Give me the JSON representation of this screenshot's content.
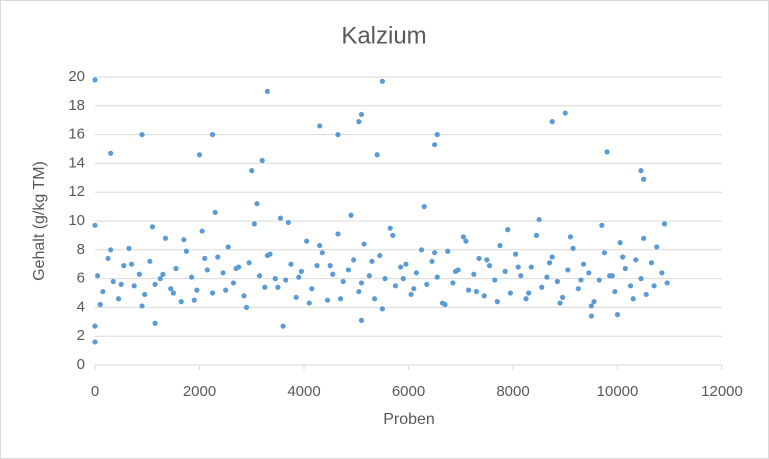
{
  "chart_data": {
    "type": "scatter",
    "title": "Kalzium",
    "x_label": "Proben",
    "y_label": "Gehalt (g/kg TM)",
    "color": "#5b9bd5",
    "grid": true,
    "xlim": [
      0,
      12000
    ],
    "xticks": [
      0,
      2000,
      4000,
      6000,
      8000,
      10000,
      12000
    ],
    "ylim": [
      0,
      20
    ],
    "yticks": [
      0,
      2,
      4,
      6,
      8,
      10,
      12,
      14,
      16,
      18,
      20
    ],
    "x": [
      50,
      150,
      250,
      350,
      450,
      550,
      650,
      750,
      850,
      950,
      1050,
      1150,
      1250,
      1350,
      1450,
      1550,
      1650,
      1750,
      1850,
      1950,
      2050,
      2150,
      2250,
      2350,
      2450,
      2550,
      2650,
      2750,
      2850,
      2950,
      3050,
      3150,
      3250,
      3350,
      3450,
      3550,
      3650,
      3750,
      3850,
      3950,
      4050,
      4150,
      4250,
      4350,
      4450,
      4550,
      4650,
      4750,
      4850,
      4950,
      5050,
      5150,
      5250,
      5350,
      5450,
      5550,
      5650,
      5750,
      5850,
      5950,
      6050,
      6150,
      6250,
      6350,
      6450,
      6550,
      6650,
      6750,
      6850,
      6950,
      7050,
      7150,
      7250,
      7350,
      7450,
      7550,
      7650,
      7750,
      7850,
      7950,
      8050,
      8150,
      8250,
      8350,
      8450,
      8550,
      8650,
      8750,
      8850,
      8950,
      9050,
      9150,
      9250,
      9350,
      9450,
      9550,
      9650,
      9750,
      9850,
      9950,
      10050,
      10150,
      10250,
      10350,
      10450,
      10550,
      10650,
      10750,
      10850,
      10950,
      100,
      300,
      500,
      700,
      900,
      1100,
      1300,
      1500,
      1700,
      1900,
      2100,
      2300,
      2500,
      2700,
      2900,
      3100,
      3300,
      3500,
      3700,
      3900,
      4100,
      4300,
      4500,
      4700,
      4900,
      5100,
      5300,
      5500,
      5700,
      5900,
      6100,
      6300,
      6500,
      6700,
      6900,
      7100,
      7300,
      7500,
      7700,
      7900,
      8100,
      8300,
      8500,
      8700,
      8900,
      9100,
      9300,
      9500,
      9700,
      9900,
      10100,
      10300,
      10500,
      10700,
      10900,
      0,
      0,
      0,
      0,
      5500,
      3300,
      900,
      2250,
      4300,
      4650,
      5100,
      5050,
      6550,
      6500,
      8750,
      9000,
      5400,
      3000,
      3200,
      300,
      2000,
      9800,
      10450,
      10500,
      3600,
      1150,
      5100,
      9500,
      10000
    ],
    "y": [
      6.2,
      5.1,
      7.4,
      5.8,
      4.6,
      6.9,
      8.1,
      5.5,
      6.3,
      4.9,
      7.2,
      5.6,
      6.0,
      8.8,
      5.3,
      6.7,
      4.4,
      7.9,
      6.1,
      5.2,
      9.3,
      6.6,
      5.0,
      7.5,
      6.4,
      8.2,
      5.7,
      6.8,
      4.8,
      7.1,
      9.8,
      6.2,
      5.4,
      7.7,
      6.0,
      10.2,
      5.9,
      7.0,
      4.7,
      6.5,
      8.6,
      5.3,
      6.9,
      7.8,
      4.5,
      6.3,
      9.1,
      5.8,
      6.6,
      7.3,
      5.1,
      8.4,
      6.2,
      4.6,
      7.6,
      6.0,
      9.5,
      5.5,
      6.8,
      7.0,
      4.9,
      6.4,
      8.0,
      5.6,
      7.2,
      6.1,
      4.3,
      7.9,
      5.7,
      6.6,
      8.9,
      5.2,
      6.3,
      7.4,
      4.8,
      6.9,
      5.9,
      8.3,
      6.5,
      5.0,
      7.7,
      6.2,
      4.6,
      6.8,
      9.0,
      5.4,
      6.1,
      7.5,
      5.8,
      4.7,
      6.6,
      8.1,
      5.3,
      7.0,
      6.4,
      4.4,
      5.9,
      7.8,
      6.2,
      5.1,
      8.5,
      6.7,
      5.5,
      7.3,
      6.0,
      4.9,
      7.1,
      8.2,
      6.4,
      5.7,
      4.2,
      8.0,
      5.6,
      7.0,
      4.1,
      9.6,
      6.3,
      5.0,
      8.7,
      4.5,
      7.4,
      10.6,
      5.2,
      6.7,
      4.0,
      11.2,
      7.6,
      5.4,
      9.9,
      6.1,
      4.3,
      8.3,
      6.9,
      4.6,
      10.4,
      5.7,
      7.2,
      3.9,
      9.0,
      6.0,
      5.3,
      11.0,
      7.8,
      4.2,
      6.5,
      8.6,
      5.1,
      7.3,
      4.4,
      9.4,
      6.8,
      5.0,
      10.1,
      7.1,
      4.3,
      8.9,
      5.9,
      4.1,
      9.7,
      6.2,
      7.5,
      4.6,
      8.8,
      5.5,
      9.8,
      19.8,
      1.6,
      2.7,
      9.7,
      19.7,
      19,
      16,
      16,
      16.6,
      16,
      17.4,
      16.9,
      16,
      15.3,
      16.9,
      17.5,
      14.6,
      13.5,
      14.2,
      14.7,
      14.6,
      14.8,
      13.5,
      12.9,
      2.7,
      2.9,
      3.1,
      3.4,
      3.5
    ]
  }
}
